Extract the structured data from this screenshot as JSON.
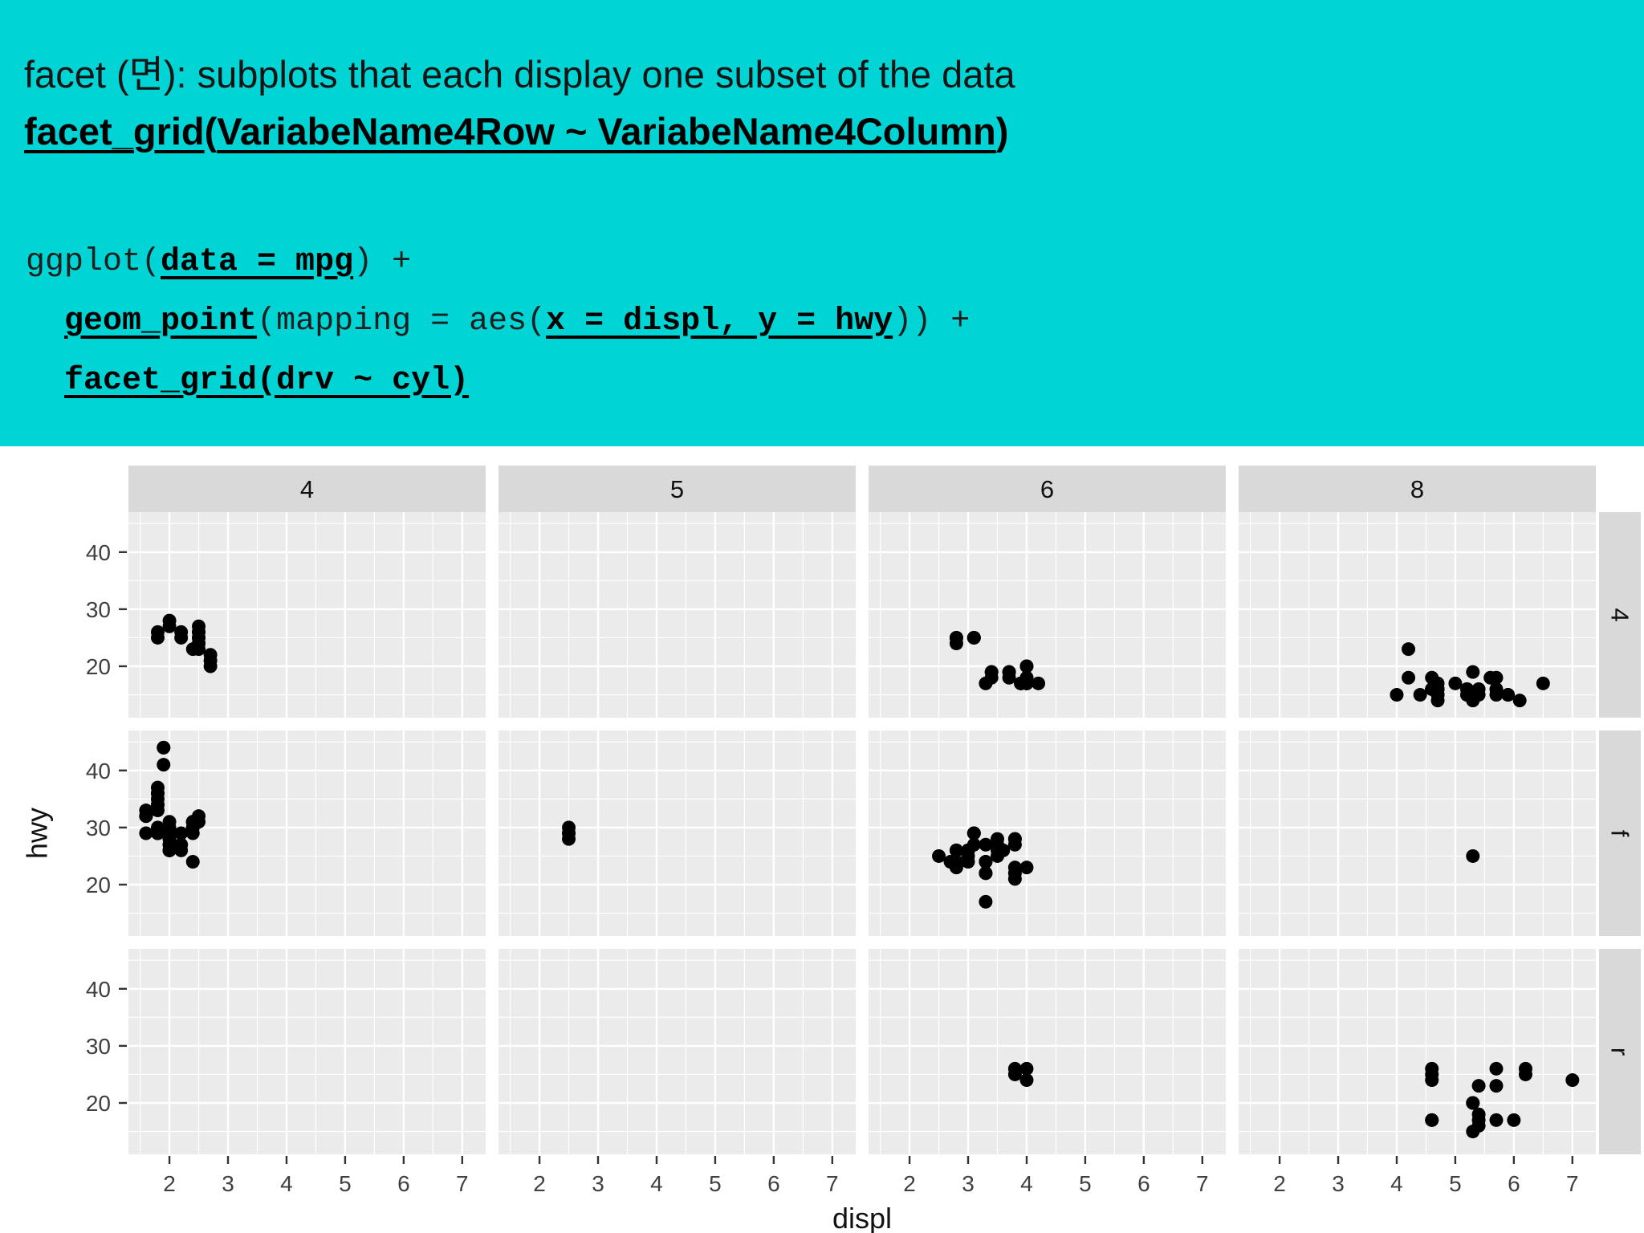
{
  "slide": {
    "banner": {
      "bg_color": "#00d4d4",
      "title_line": "facet (면): subplots that each display one subset of the data",
      "signature": {
        "fn": "facet_grid",
        "open": "(",
        "args": "VariabeName4Row ~ VariabeName4Column",
        "close": ")"
      },
      "code": {
        "l1_pre": "ggplot(",
        "l1_u": "data = mpg",
        "l1_post": ") +",
        "l2_indent": "  ",
        "l2_u1": "geom_point",
        "l2_mid": "(mapping = aes(",
        "l2_u2": "x = displ, y = hwy",
        "l2_post": ")) +",
        "l3_indent": "  ",
        "l3_u": "facet_grid(drv ~ cyl)"
      }
    }
  },
  "chart_data": {
    "type": "scatter",
    "title": "",
    "xlabel": "displ",
    "ylabel": "hwy",
    "x_ticks": [
      2,
      3,
      4,
      5,
      6,
      7
    ],
    "y_ticks": [
      20,
      30,
      40
    ],
    "x_range": [
      1.3,
      7.4
    ],
    "y_range": [
      11,
      47
    ],
    "grid": true,
    "legend": "none",
    "panel_bg": "#ebebeb",
    "strip_bg": "#d9d9d9",
    "grid_color": "#ffffff",
    "point_color": "#000000",
    "facet": {
      "rows_var": "drv",
      "cols_var": "cyl",
      "col_labels": [
        "4",
        "5",
        "6",
        "8"
      ],
      "row_labels": [
        "4",
        "f",
        "r"
      ]
    },
    "points": {
      "4|4": [
        [
          1.8,
          26
        ],
        [
          1.8,
          25
        ],
        [
          2.0,
          28
        ],
        [
          2.0,
          27
        ],
        [
          2.2,
          26
        ],
        [
          2.2,
          25
        ],
        [
          2.4,
          23
        ],
        [
          2.5,
          26
        ],
        [
          2.5,
          25
        ],
        [
          2.5,
          25
        ],
        [
          2.5,
          24
        ],
        [
          2.5,
          27
        ],
        [
          2.5,
          26
        ],
        [
          2.5,
          23
        ],
        [
          2.5,
          24
        ],
        [
          2.7,
          22
        ],
        [
          2.7,
          20
        ],
        [
          2.7,
          21
        ]
      ],
      "4|5": [],
      "4|6": [
        [
          2.8,
          25
        ],
        [
          2.8,
          25
        ],
        [
          2.8,
          24
        ],
        [
          3.1,
          25
        ],
        [
          3.1,
          25
        ],
        [
          3.1,
          25
        ],
        [
          3.3,
          17
        ],
        [
          3.4,
          19
        ],
        [
          3.4,
          19
        ],
        [
          3.4,
          18
        ],
        [
          3.7,
          19
        ],
        [
          3.7,
          18
        ],
        [
          3.7,
          19
        ],
        [
          3.9,
          17
        ],
        [
          3.9,
          17
        ],
        [
          3.9,
          17
        ],
        [
          4.0,
          17
        ],
        [
          4.0,
          17
        ],
        [
          4.0,
          18
        ],
        [
          4.0,
          17
        ],
        [
          4.0,
          18
        ],
        [
          4.0,
          20
        ],
        [
          4.0,
          20
        ],
        [
          4.2,
          17
        ]
      ],
      "4|8": [
        [
          4.0,
          15
        ],
        [
          4.2,
          23
        ],
        [
          4.2,
          18
        ],
        [
          4.4,
          15
        ],
        [
          4.6,
          16
        ],
        [
          4.6,
          18
        ],
        [
          4.6,
          16
        ],
        [
          4.6,
          16
        ],
        [
          4.7,
          15
        ],
        [
          4.7,
          16
        ],
        [
          4.7,
          15
        ],
        [
          4.7,
          16
        ],
        [
          4.7,
          16
        ],
        [
          4.7,
          15
        ],
        [
          4.7,
          14
        ],
        [
          4.7,
          16
        ],
        [
          4.7,
          17
        ],
        [
          5.0,
          17
        ],
        [
          5.2,
          15
        ],
        [
          5.2,
          15
        ],
        [
          5.2,
          16
        ],
        [
          5.2,
          16
        ],
        [
          5.3,
          14
        ],
        [
          5.3,
          19
        ],
        [
          5.4,
          15
        ],
        [
          5.4,
          16
        ],
        [
          5.6,
          18
        ],
        [
          5.7,
          15
        ],
        [
          5.7,
          18
        ],
        [
          5.7,
          16
        ],
        [
          5.9,
          15
        ],
        [
          5.9,
          15
        ],
        [
          6.1,
          14
        ],
        [
          6.5,
          17
        ]
      ],
      "f|4": [
        [
          1.6,
          33
        ],
        [
          1.6,
          32
        ],
        [
          1.6,
          32
        ],
        [
          1.6,
          29
        ],
        [
          1.6,
          32
        ],
        [
          1.8,
          29
        ],
        [
          1.8,
          29
        ],
        [
          1.8,
          34
        ],
        [
          1.8,
          36
        ],
        [
          1.8,
          36
        ],
        [
          1.8,
          30
        ],
        [
          1.8,
          33
        ],
        [
          1.8,
          34
        ],
        [
          1.8,
          35
        ],
        [
          1.8,
          37
        ],
        [
          1.8,
          29
        ],
        [
          1.8,
          29
        ],
        [
          1.9,
          44
        ],
        [
          1.9,
          44
        ],
        [
          1.9,
          41
        ],
        [
          2.0,
          31
        ],
        [
          2.0,
          30
        ],
        [
          2.0,
          29
        ],
        [
          2.0,
          27
        ],
        [
          2.0,
          28
        ],
        [
          2.0,
          26
        ],
        [
          2.0,
          27
        ],
        [
          2.0,
          29
        ],
        [
          2.0,
          26
        ],
        [
          2.0,
          29
        ],
        [
          2.0,
          29
        ],
        [
          2.0,
          29
        ],
        [
          2.0,
          26
        ],
        [
          2.0,
          29
        ],
        [
          2.0,
          26
        ],
        [
          2.0,
          28
        ],
        [
          2.0,
          29
        ],
        [
          2.2,
          27
        ],
        [
          2.2,
          29
        ],
        [
          2.2,
          26
        ],
        [
          2.2,
          27
        ],
        [
          2.4,
          30
        ],
        [
          2.4,
          31
        ],
        [
          2.4,
          24
        ],
        [
          2.4,
          31
        ],
        [
          2.4,
          30
        ],
        [
          2.4,
          29
        ],
        [
          2.4,
          31
        ],
        [
          2.4,
          31
        ],
        [
          2.5,
          31
        ],
        [
          2.5,
          32
        ]
      ],
      "f|5": [
        [
          2.5,
          28
        ],
        [
          2.5,
          29
        ],
        [
          2.5,
          29
        ],
        [
          2.5,
          30
        ]
      ],
      "f|6": [
        [
          2.5,
          25
        ],
        [
          2.7,
          24
        ],
        [
          2.7,
          24
        ],
        [
          2.8,
          26
        ],
        [
          2.8,
          26
        ],
        [
          2.8,
          24
        ],
        [
          2.8,
          23
        ],
        [
          2.8,
          24
        ],
        [
          2.8,
          26
        ],
        [
          3.0,
          24
        ],
        [
          3.0,
          26
        ],
        [
          3.0,
          26
        ],
        [
          3.0,
          25
        ],
        [
          3.0,
          26
        ],
        [
          3.0,
          26
        ],
        [
          3.0,
          26
        ],
        [
          3.0,
          26
        ],
        [
          3.1,
          27
        ],
        [
          3.1,
          29
        ],
        [
          3.1,
          29
        ],
        [
          3.3,
          22
        ],
        [
          3.3,
          22
        ],
        [
          3.3,
          24
        ],
        [
          3.3,
          24
        ],
        [
          3.3,
          17
        ],
        [
          3.3,
          27
        ],
        [
          3.5,
          26
        ],
        [
          3.5,
          27
        ],
        [
          3.5,
          25
        ],
        [
          3.5,
          28
        ],
        [
          3.6,
          26
        ],
        [
          3.8,
          22
        ],
        [
          3.8,
          21
        ],
        [
          3.8,
          23
        ],
        [
          3.8,
          28
        ],
        [
          3.8,
          27
        ],
        [
          3.8,
          28
        ],
        [
          4.0,
          23
        ]
      ],
      "f|8": [
        [
          5.3,
          25
        ]
      ],
      "r|4": [],
      "r|5": [],
      "r|6": [
        [
          3.8,
          26
        ],
        [
          3.8,
          25
        ],
        [
          4.0,
          26
        ],
        [
          4.0,
          24
        ]
      ],
      "r|8": [
        [
          4.6,
          17
        ],
        [
          4.6,
          17
        ],
        [
          4.6,
          26
        ],
        [
          4.6,
          25
        ],
        [
          4.6,
          24
        ],
        [
          5.3,
          20
        ],
        [
          5.3,
          15
        ],
        [
          5.3,
          20
        ],
        [
          5.4,
          17
        ],
        [
          5.4,
          16
        ],
        [
          5.4,
          18
        ],
        [
          5.4,
          23
        ],
        [
          5.7,
          17
        ],
        [
          5.7,
          26
        ],
        [
          5.7,
          23
        ],
        [
          6.0,
          17
        ],
        [
          6.2,
          26
        ],
        [
          6.2,
          25
        ],
        [
          7.0,
          24
        ]
      ]
    }
  }
}
